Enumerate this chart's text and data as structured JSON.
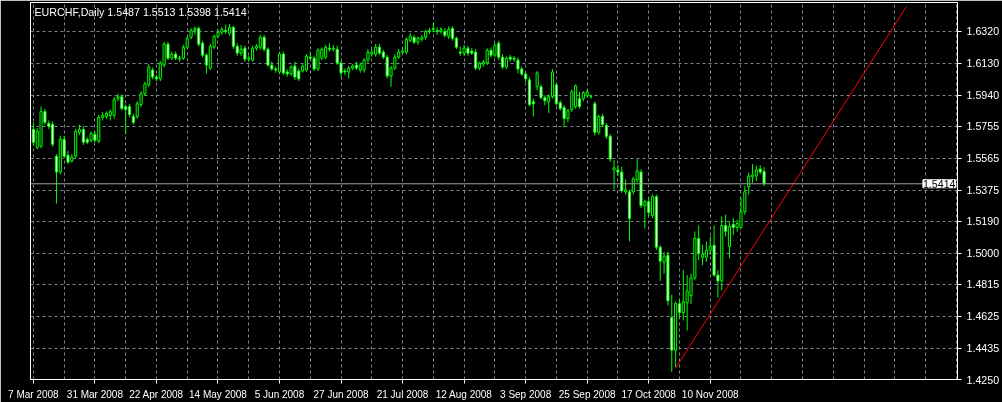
{
  "chart_data": {
    "type": "candlestick",
    "title": "EURCHF,Daily 1.5487 1.5513 1.5398 1.5414",
    "categories": [
      "7 Mar 2008",
      null,
      null,
      null,
      null,
      null,
      null,
      null,
      null,
      null,
      null,
      null,
      null,
      null,
      null,
      null,
      "31 Mar 2008",
      null,
      null,
      null,
      null,
      null,
      null,
      null,
      null,
      null,
      null,
      null,
      null,
      null,
      null,
      null,
      "22 Apr 2008",
      null,
      null,
      null,
      null,
      null,
      null,
      null,
      null,
      null,
      null,
      null,
      null,
      null,
      null,
      null,
      "14 May 2008",
      null,
      null,
      null,
      null,
      null,
      null,
      null,
      null,
      null,
      null,
      null,
      null,
      null,
      null,
      null,
      "5 Jun 2008",
      null,
      null,
      null,
      null,
      null,
      null,
      null,
      null,
      null,
      null,
      null,
      null,
      null,
      null,
      null,
      "27 Jun 2008",
      null,
      null,
      null,
      null,
      null,
      null,
      null,
      null,
      null,
      null,
      null,
      null,
      null,
      null,
      null,
      "21 Jul 2008",
      null,
      null,
      null,
      null,
      null,
      null,
      null,
      null,
      null,
      null,
      null,
      null,
      null,
      null,
      null,
      "12 Aug 2008",
      null,
      null,
      null,
      null,
      null,
      null,
      null,
      null,
      null,
      null,
      null,
      null,
      null,
      null,
      null,
      "3 Sep 2008",
      null,
      null,
      null,
      null,
      null,
      null,
      null,
      null,
      null,
      null,
      null,
      null,
      null,
      null,
      null,
      "25 Sep 2008",
      null,
      null,
      null,
      null,
      null,
      null,
      null,
      null,
      null,
      null,
      null,
      null,
      null,
      null,
      null,
      "17 Oct 2008",
      null,
      null,
      null,
      null,
      null,
      null,
      null,
      null,
      null,
      null,
      null,
      null,
      null,
      null,
      null,
      "10 Nov 2008",
      null,
      null,
      null,
      null,
      null,
      null,
      null,
      null,
      null,
      null,
      null,
      null,
      null,
      null,
      null,
      null,
      null,
      null,
      null,
      null,
      null,
      null,
      null,
      null,
      null,
      null,
      null,
      null,
      null,
      null,
      null,
      null,
      null,
      null,
      null,
      null,
      null,
      null,
      null,
      null,
      null,
      null,
      null,
      null,
      null,
      null,
      null,
      null,
      null,
      null,
      null,
      null,
      null,
      null,
      null,
      null,
      null,
      null,
      null,
      null,
      null,
      null,
      null,
      null
    ],
    "ylim": [
      1.425,
      1.6492
    ],
    "yticks": [
      {
        "value": 1.425,
        "label": "1.4250"
      },
      {
        "value": 1.4435,
        "label": "1.4435"
      },
      {
        "value": 1.4625,
        "label": "1.4625"
      },
      {
        "value": 1.4815,
        "label": "1.4815"
      },
      {
        "value": 1.5,
        "label": "1.5000"
      },
      {
        "value": 1.519,
        "label": "1.5190"
      },
      {
        "value": 1.5375,
        "label": "1.5375"
      },
      {
        "value": 1.5565,
        "label": "1.5565"
      },
      {
        "value": 1.5755,
        "label": "1.5755"
      },
      {
        "value": 1.594,
        "label": "1.5940"
      },
      {
        "value": 1.613,
        "label": "1.6130"
      },
      {
        "value": 1.632,
        "label": "1.6320"
      }
    ],
    "grid": true,
    "ref_lines": [
      {
        "axis": "y",
        "value": 1.5414,
        "label": "1.5414",
        "color": "#a0a0a0"
      }
    ],
    "series": [
      {
        "color": "#00ff00",
        "ohlc": [
          [
            1.5737,
            1.5779,
            1.564,
            1.5661
          ],
          [
            1.5631,
            1.5745,
            1.562,
            1.5726
          ],
          [
            1.5637,
            1.5873,
            1.5625,
            1.5843
          ],
          [
            1.5843,
            1.586,
            1.5765,
            1.5779
          ],
          [
            1.5773,
            1.579,
            1.574,
            1.5755
          ],
          [
            1.5767,
            1.5785,
            1.5635,
            1.5649
          ],
          [
            1.5578,
            1.559,
            1.5296,
            1.5484
          ],
          [
            1.5484,
            1.57,
            1.547,
            1.5678
          ],
          [
            1.5678,
            1.57,
            1.5565,
            1.5578
          ],
          [
            1.5584,
            1.561,
            1.553,
            1.5543
          ],
          [
            1.5549,
            1.559,
            1.554,
            1.5572
          ],
          [
            1.5578,
            1.574,
            1.5565,
            1.5726
          ],
          [
            1.572,
            1.5765,
            1.5705,
            1.5737
          ],
          [
            1.5737,
            1.5755,
            1.5645,
            1.5661
          ],
          [
            1.5678,
            1.569,
            1.565,
            1.5661
          ],
          [
            1.5673,
            1.5725,
            1.566,
            1.5714
          ],
          [
            1.5708,
            1.5725,
            1.566,
            1.5673
          ],
          [
            1.5667,
            1.5825,
            1.5655,
            1.5808
          ],
          [
            1.5808,
            1.584,
            1.579,
            1.582
          ],
          [
            1.5814,
            1.5845,
            1.58,
            1.5832
          ],
          [
            1.582,
            1.5855,
            1.579,
            1.5843
          ],
          [
            1.582,
            1.593,
            1.58,
            1.5914
          ],
          [
            1.592,
            1.595,
            1.5905,
            1.5932
          ],
          [
            1.5932,
            1.5945,
            1.585,
            1.5861
          ],
          [
            1.5873,
            1.5885,
            1.5708,
            1.5855
          ],
          [
            1.5873,
            1.589,
            1.581,
            1.5826
          ],
          [
            1.5814,
            1.583,
            1.5765,
            1.5779
          ],
          [
            1.5814,
            1.5905,
            1.58,
            1.589
          ],
          [
            1.5885,
            1.5965,
            1.587,
            1.5949
          ],
          [
            1.5949,
            1.602,
            1.5935,
            1.6008
          ],
          [
            1.6002,
            1.6125,
            1.599,
            1.6108
          ],
          [
            1.6091,
            1.6105,
            1.6035,
            1.6049
          ],
          [
            1.6049,
            1.606,
            1.6025,
            1.6038
          ],
          [
            1.6038,
            1.6145,
            1.6025,
            1.6132
          ],
          [
            1.612,
            1.6258,
            1.6105,
            1.6244
          ],
          [
            1.6244,
            1.6258,
            1.615,
            1.6161
          ],
          [
            1.6161,
            1.62,
            1.615,
            1.6185
          ],
          [
            1.6185,
            1.62,
            1.615,
            1.6161
          ],
          [
            1.6155,
            1.6175,
            1.614,
            1.6161
          ],
          [
            1.6161,
            1.624,
            1.615,
            1.6226
          ],
          [
            1.6226,
            1.629,
            1.6215,
            1.6279
          ],
          [
            1.6285,
            1.634,
            1.6275,
            1.6326
          ],
          [
            1.6326,
            1.635,
            1.63,
            1.6338
          ],
          [
            1.6338,
            1.635,
            1.623,
            1.6244
          ],
          [
            1.625,
            1.6265,
            1.6165,
            1.6179
          ],
          [
            1.6179,
            1.619,
            1.607,
            1.612
          ],
          [
            1.6102,
            1.6245,
            1.609,
            1.6232
          ],
          [
            1.6226,
            1.63,
            1.6215,
            1.6291
          ],
          [
            1.6291,
            1.633,
            1.628,
            1.6315
          ],
          [
            1.6315,
            1.6345,
            1.63,
            1.6332
          ],
          [
            1.6326,
            1.636,
            1.6305,
            1.632
          ],
          [
            1.6309,
            1.6365,
            1.6295,
            1.6344
          ],
          [
            1.6344,
            1.6355,
            1.6215,
            1.6232
          ],
          [
            1.6232,
            1.625,
            1.6175,
            1.6191
          ],
          [
            1.6191,
            1.624,
            1.6175,
            1.6214
          ],
          [
            1.622,
            1.6235,
            1.614,
            1.6155
          ],
          [
            1.6155,
            1.6175,
            1.614,
            1.6161
          ],
          [
            1.615,
            1.6235,
            1.614,
            1.622
          ],
          [
            1.622,
            1.6245,
            1.6205,
            1.6232
          ],
          [
            1.6226,
            1.63,
            1.621,
            1.6285
          ],
          [
            1.6285,
            1.63,
            1.62,
            1.6214
          ],
          [
            1.6214,
            1.6225,
            1.611,
            1.612
          ],
          [
            1.612,
            1.614,
            1.6085,
            1.6097
          ],
          [
            1.6097,
            1.611,
            1.6075,
            1.6091
          ],
          [
            1.6079,
            1.62,
            1.6065,
            1.6185
          ],
          [
            1.6185,
            1.62,
            1.606,
            1.6073
          ],
          [
            1.6079,
            1.6095,
            1.605,
            1.6067
          ],
          [
            1.6067,
            1.612,
            1.6055,
            1.6108
          ],
          [
            1.6114,
            1.614,
            1.603,
            1.6049
          ],
          [
            1.6085,
            1.61,
            1.6025,
            1.6038
          ],
          [
            1.6085,
            1.6125,
            1.6075,
            1.6114
          ],
          [
            1.6091,
            1.6185,
            1.608,
            1.6173
          ],
          [
            1.6167,
            1.62,
            1.615,
            1.6161
          ],
          [
            1.6161,
            1.6175,
            1.6085,
            1.6097
          ],
          [
            1.6097,
            1.622,
            1.6085,
            1.6208
          ],
          [
            1.6161,
            1.6225,
            1.615,
            1.6214
          ],
          [
            1.6167,
            1.624,
            1.6155,
            1.6226
          ],
          [
            1.622,
            1.625,
            1.62,
            1.6214
          ],
          [
            1.6214,
            1.624,
            1.62,
            1.622
          ],
          [
            1.6214,
            1.6235,
            1.612,
            1.6132
          ],
          [
            1.6132,
            1.6145,
            1.605,
            1.6073
          ],
          [
            1.6085,
            1.61,
            1.606,
            1.6079
          ],
          [
            1.6079,
            1.6115,
            1.604,
            1.6102
          ],
          [
            1.6102,
            1.6125,
            1.609,
            1.6114
          ],
          [
            1.612,
            1.614,
            1.609,
            1.6102
          ],
          [
            1.6091,
            1.6135,
            1.6075,
            1.612
          ],
          [
            1.6091,
            1.616,
            1.6075,
            1.615
          ],
          [
            1.615,
            1.6215,
            1.6135,
            1.6197
          ],
          [
            1.6185,
            1.6215,
            1.617,
            1.6197
          ],
          [
            1.6185,
            1.6245,
            1.617,
            1.6226
          ],
          [
            1.6226,
            1.6245,
            1.618,
            1.6191
          ],
          [
            1.6197,
            1.621,
            1.6155,
            1.6167
          ],
          [
            1.6167,
            1.618,
            1.604,
            1.6055
          ],
          [
            1.6055,
            1.6115,
            1.5991,
            1.6102
          ],
          [
            1.6102,
            1.6185,
            1.609,
            1.6167
          ],
          [
            1.6167,
            1.6215,
            1.6155,
            1.6197
          ],
          [
            1.6197,
            1.6225,
            1.6185,
            1.6203
          ],
          [
            1.6197,
            1.6285,
            1.6185,
            1.6273
          ],
          [
            1.6267,
            1.631,
            1.6255,
            1.6291
          ],
          [
            1.6285,
            1.63,
            1.6245,
            1.6256
          ],
          [
            1.6256,
            1.629,
            1.624,
            1.6279
          ],
          [
            1.6273,
            1.63,
            1.626,
            1.6285
          ],
          [
            1.6285,
            1.633,
            1.627,
            1.632
          ],
          [
            1.632,
            1.634,
            1.6305,
            1.6326
          ],
          [
            1.6332,
            1.6373,
            1.6315,
            1.6338
          ],
          [
            1.6326,
            1.6345,
            1.63,
            1.632
          ],
          [
            1.632,
            1.6345,
            1.6305,
            1.6332
          ],
          [
            1.632,
            1.634,
            1.6285,
            1.6297
          ],
          [
            1.6291,
            1.635,
            1.6275,
            1.6332
          ],
          [
            1.6338,
            1.635,
            1.6265,
            1.6279
          ],
          [
            1.6279,
            1.629,
            1.6215,
            1.6226
          ],
          [
            1.6197,
            1.623,
            1.6175,
            1.6191
          ],
          [
            1.6191,
            1.624,
            1.6175,
            1.622
          ],
          [
            1.622,
            1.6235,
            1.6175,
            1.6191
          ],
          [
            1.6203,
            1.622,
            1.618,
            1.6191
          ],
          [
            1.6197,
            1.6215,
            1.609,
            1.6102
          ],
          [
            1.6102,
            1.614,
            1.609,
            1.6132
          ],
          [
            1.6126,
            1.615,
            1.611,
            1.6138
          ],
          [
            1.6132,
            1.622,
            1.612,
            1.6208
          ],
          [
            1.6208,
            1.6225,
            1.6165,
            1.6179
          ],
          [
            1.6179,
            1.625,
            1.6165,
            1.6238
          ],
          [
            1.625,
            1.6265,
            1.615,
            1.6167
          ],
          [
            1.6167,
            1.6185,
            1.6095,
            1.6108
          ],
          [
            1.6108,
            1.617,
            1.6095,
            1.6161
          ],
          [
            1.6167,
            1.618,
            1.614,
            1.6155
          ],
          [
            1.6161,
            1.6175,
            1.614,
            1.6155
          ],
          [
            1.615,
            1.6165,
            1.607,
            1.6097
          ],
          [
            1.6097,
            1.611,
            1.6055,
            1.6067
          ],
          [
            1.6067,
            1.608,
            1.602,
            1.6038
          ],
          [
            1.6032,
            1.605,
            1.5875,
            1.5885
          ],
          [
            1.5902,
            1.592,
            1.5814,
            1.589
          ],
          [
            1.5991,
            1.6085,
            1.597,
            1.6073
          ],
          [
            1.5991,
            1.6005,
            1.5915,
            1.5926
          ],
          [
            1.5926,
            1.594,
            1.588,
            1.5908
          ],
          [
            1.5902,
            1.5945,
            1.5835,
            1.5932
          ],
          [
            1.5932,
            1.6097,
            1.592,
            1.6079
          ],
          [
            1.6002,
            1.6015,
            1.588,
            1.589
          ],
          [
            1.5896,
            1.591,
            1.585,
            1.5861
          ],
          [
            1.5867,
            1.588,
            1.5749,
            1.5802
          ],
          [
            1.5802,
            1.586,
            1.578,
            1.5849
          ],
          [
            1.5855,
            1.5975,
            1.584,
            1.5961
          ],
          [
            1.5873,
            1.6005,
            1.586,
            1.5996
          ],
          [
            1.592,
            1.596,
            1.586,
            1.5873
          ],
          [
            1.592,
            1.5965,
            1.5905,
            1.5955
          ],
          [
            1.5938,
            1.5975,
            1.5925,
            1.5961
          ],
          [
            1.5932,
            1.5945,
            1.592,
            1.5932
          ],
          [
            1.589,
            1.5905,
            1.57,
            1.572
          ],
          [
            1.572,
            1.5825,
            1.5705,
            1.5814
          ],
          [
            1.5814,
            1.583,
            1.575,
            1.5767
          ],
          [
            1.5761,
            1.5775,
            1.568,
            1.5696
          ],
          [
            1.5696,
            1.571,
            1.5545,
            1.5561
          ],
          [
            1.5496,
            1.5555,
            1.538,
            1.5508
          ],
          [
            1.5496,
            1.5525,
            1.546,
            1.5484
          ],
          [
            1.5484,
            1.5514,
            1.536,
            1.5372
          ],
          [
            1.5366,
            1.544,
            1.535,
            1.5378
          ],
          [
            1.5366,
            1.5378,
            1.5072,
            1.5207
          ],
          [
            1.5366,
            1.5455,
            1.535,
            1.5443
          ],
          [
            1.5437,
            1.5561,
            1.542,
            1.549
          ],
          [
            1.5484,
            1.55,
            1.527,
            1.5284
          ],
          [
            1.5284,
            1.532,
            1.5148,
            1.5307
          ],
          [
            1.5307,
            1.533,
            1.522,
            1.5243
          ],
          [
            1.5225,
            1.535,
            1.521,
            1.5337
          ],
          [
            1.5337,
            1.535,
            1.502,
            1.5036
          ],
          [
            1.5036,
            1.505,
            1.4836,
            1.4954
          ],
          [
            1.4948,
            1.501,
            1.488,
            1.4983
          ],
          [
            1.4989,
            1.501,
            1.469,
            1.4718
          ],
          [
            1.4618,
            1.4754,
            1.4294,
            1.4424
          ],
          [
            1.4424,
            1.4715,
            1.4324,
            1.4701
          ],
          [
            1.4701,
            1.473,
            1.462,
            1.4648
          ],
          [
            1.4648,
            1.4901,
            1.4601,
            1.4712
          ],
          [
            1.4707,
            1.4871,
            1.4542,
            1.4777
          ],
          [
            1.4748,
            1.488,
            1.47,
            1.4854
          ],
          [
            1.4854,
            1.513,
            1.484,
            1.5089
          ],
          [
            1.5089,
            1.5166,
            1.496,
            1.5001
          ],
          [
            1.4977,
            1.505,
            1.493,
            1.4995
          ],
          [
            1.4977,
            1.507,
            1.495,
            1.5019
          ],
          [
            1.5019,
            1.51,
            1.499,
            1.5042
          ],
          [
            1.5048,
            1.5166,
            1.486,
            1.4871
          ],
          [
            1.4871,
            1.49,
            1.4736,
            1.4836
          ],
          [
            1.4836,
            1.522,
            1.478,
            1.5166
          ],
          [
            1.5166,
            1.523,
            1.51,
            1.5131
          ],
          [
            1.5042,
            1.519,
            1.497,
            1.516
          ],
          [
            1.5172,
            1.521,
            1.511,
            1.5154
          ],
          [
            1.5154,
            1.52,
            1.513,
            1.5178
          ],
          [
            1.5154,
            1.5331,
            1.515,
            1.5248
          ],
          [
            1.5248,
            1.54,
            1.523,
            1.5366
          ],
          [
            1.5396,
            1.548,
            1.535,
            1.546
          ],
          [
            1.5455,
            1.5531,
            1.542,
            1.5466
          ],
          [
            1.546,
            1.552,
            1.543,
            1.5496
          ],
          [
            1.5502,
            1.5525,
            1.547,
            1.5484
          ],
          [
            1.5487,
            1.5513,
            1.5398,
            1.5414
          ],
          null,
          null,
          null,
          null,
          null,
          null,
          null,
          null,
          null,
          null,
          null,
          null,
          null,
          null,
          null,
          null,
          null,
          null,
          null,
          null,
          null,
          null,
          null,
          null,
          null,
          null,
          null,
          null,
          null,
          null,
          null,
          null,
          null,
          null,
          null,
          null,
          null,
          null,
          null,
          null,
          null,
          null,
          null,
          null,
          null,
          null,
          null,
          null,
          null,
          null
        ]
      },
      {
        "type": "line",
        "color": "#ff0000",
        "values": [
          null,
          null,
          null,
          null,
          null,
          null,
          null,
          null,
          null,
          null,
          null,
          null,
          null,
          null,
          null,
          null,
          null,
          null,
          null,
          null,
          null,
          null,
          null,
          null,
          null,
          null,
          null,
          null,
          null,
          null,
          null,
          null,
          null,
          null,
          null,
          null,
          null,
          null,
          null,
          null,
          null,
          null,
          null,
          null,
          null,
          null,
          null,
          null,
          null,
          null,
          null,
          null,
          null,
          null,
          null,
          null,
          null,
          null,
          null,
          null,
          null,
          null,
          null,
          null,
          null,
          null,
          null,
          null,
          null,
          null,
          null,
          null,
          null,
          null,
          null,
          null,
          null,
          null,
          null,
          null,
          null,
          null,
          null,
          null,
          null,
          null,
          null,
          null,
          null,
          null,
          null,
          null,
          null,
          null,
          null,
          null,
          null,
          null,
          null,
          null,
          null,
          null,
          null,
          null,
          null,
          null,
          null,
          null,
          null,
          null,
          null,
          null,
          null,
          null,
          null,
          null,
          null,
          null,
          null,
          null,
          null,
          null,
          null,
          null,
          null,
          null,
          null,
          null,
          null,
          null,
          null,
          null,
          null,
          null,
          null,
          null,
          null,
          null,
          null,
          null,
          null,
          null,
          null,
          null,
          null,
          null,
          null,
          null,
          null,
          null,
          null,
          null,
          null,
          null,
          null,
          null,
          null,
          null,
          null,
          null,
          null,
          null,
          null,
          null,
          null,
          null,
          null,
          1.4317,
          null,
          null,
          null,
          null,
          null,
          null,
          null,
          null,
          null,
          null,
          null,
          null,
          null,
          null,
          null,
          null,
          null,
          null,
          null,
          null,
          null,
          null,
          null,
          null,
          null,
          null,
          null,
          null,
          null,
          null,
          null,
          null,
          null,
          null,
          null,
          null,
          null,
          null,
          null,
          null,
          null,
          null,
          null,
          null,
          null,
          null,
          null,
          null,
          null,
          null,
          null,
          null,
          null,
          null,
          null,
          null,
          null,
          null,
          null,
          1.6467,
          null,
          null,
          null,
          null,
          null,
          null,
          null,
          null,
          null,
          null,
          null,
          null,
          null
        ]
      }
    ]
  }
}
